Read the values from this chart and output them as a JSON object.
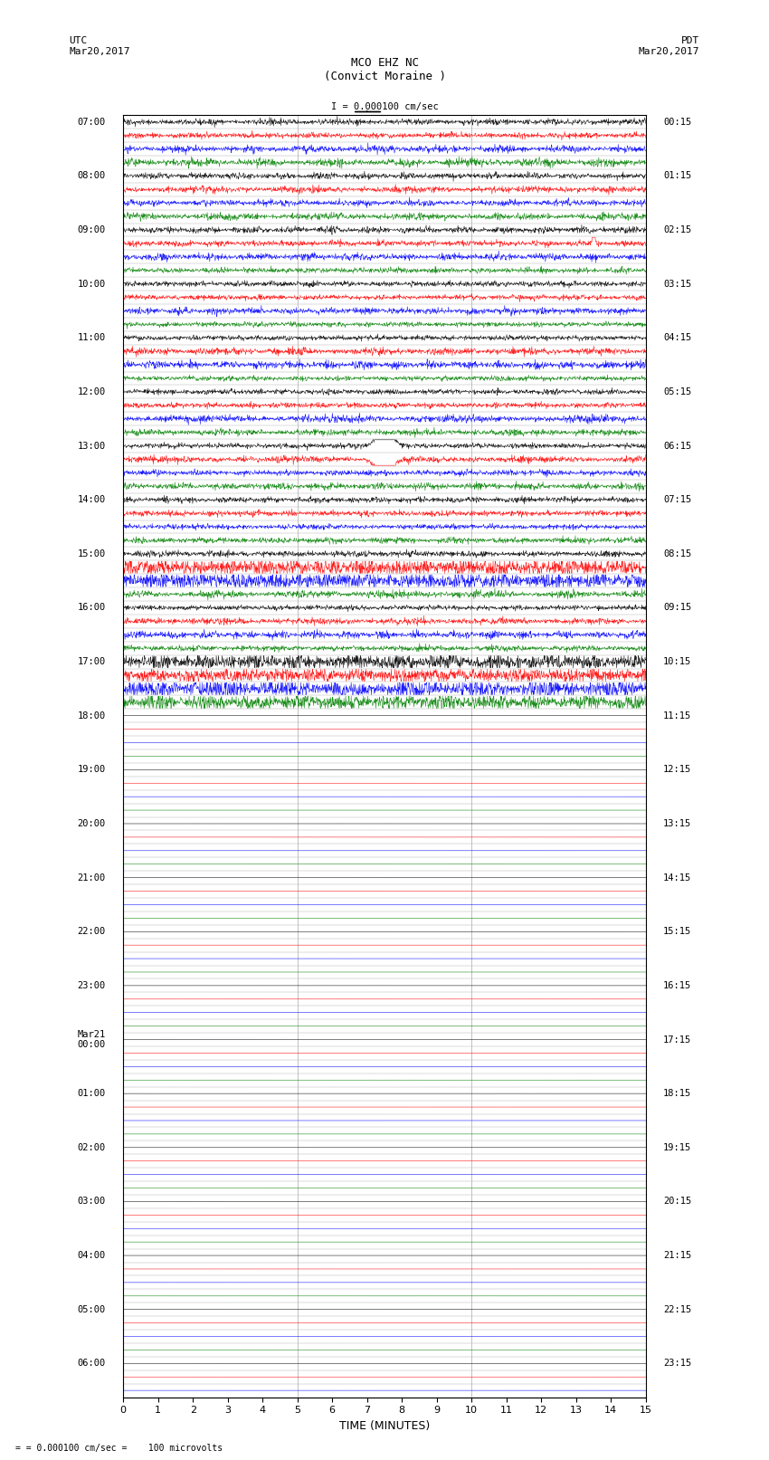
{
  "title_line1": "MCO EHZ NC",
  "title_line2": "(Convict Moraine )",
  "scale_label": "I = 0.000100 cm/sec",
  "left_header": "UTC\nMar20,2017",
  "right_header": "PDT\nMar20,2017",
  "bottom_label": "TIME (MINUTES)",
  "bottom_note": "= 0.000100 cm/sec =    100 microvolts",
  "xlim": [
    0,
    15
  ],
  "xticks": [
    0,
    1,
    2,
    3,
    4,
    5,
    6,
    7,
    8,
    9,
    10,
    11,
    12,
    13,
    14,
    15
  ],
  "figure_width": 8.5,
  "figure_height": 16.13,
  "dpi": 100,
  "left_times": [
    "07:00",
    "",
    "",
    "",
    "08:00",
    "",
    "",
    "",
    "09:00",
    "",
    "",
    "",
    "10:00",
    "",
    "",
    "",
    "11:00",
    "",
    "",
    "",
    "12:00",
    "",
    "",
    "",
    "13:00",
    "",
    "",
    "",
    "14:00",
    "",
    "",
    "",
    "15:00",
    "",
    "",
    "",
    "16:00",
    "",
    "",
    "",
    "17:00",
    "",
    "",
    "",
    "18:00",
    "",
    "",
    "",
    "19:00",
    "",
    "",
    "",
    "20:00",
    "",
    "",
    "",
    "21:00",
    "",
    "",
    "",
    "22:00",
    "",
    "",
    "",
    "23:00",
    "",
    "",
    "",
    "Mar21\n00:00",
    "",
    "",
    "",
    "01:00",
    "",
    "",
    "",
    "02:00",
    "",
    "",
    "",
    "03:00",
    "",
    "",
    "",
    "04:00",
    "",
    "",
    "",
    "05:00",
    "",
    "",
    "",
    "06:00",
    "",
    ""
  ],
  "right_times": [
    "00:15",
    "",
    "",
    "",
    "01:15",
    "",
    "",
    "",
    "02:15",
    "",
    "",
    "",
    "03:15",
    "",
    "",
    "",
    "04:15",
    "",
    "",
    "",
    "05:15",
    "",
    "",
    "",
    "06:15",
    "",
    "",
    "",
    "07:15",
    "",
    "",
    "",
    "08:15",
    "",
    "",
    "",
    "09:15",
    "",
    "",
    "",
    "10:15",
    "",
    "",
    "",
    "11:15",
    "",
    "",
    "",
    "12:15",
    "",
    "",
    "",
    "13:15",
    "",
    "",
    "",
    "14:15",
    "",
    "",
    "",
    "15:15",
    "",
    "",
    "",
    "16:15",
    "",
    "",
    "",
    "17:15",
    "",
    "",
    "",
    "18:15",
    "",
    "",
    "",
    "19:15",
    "",
    "",
    "",
    "20:15",
    "",
    "",
    "",
    "21:15",
    "",
    "",
    "",
    "22:15",
    "",
    "",
    "",
    "23:15",
    "",
    ""
  ],
  "num_rows": 95,
  "row_colors": [
    "black",
    "red",
    "blue",
    "green"
  ],
  "active_rows": 44,
  "noise_scale_active": 0.25,
  "noise_scale_inactive": 0.02,
  "seed": 42,
  "bg_color": "white",
  "grid_color": "#aaaaaa",
  "text_color": "black",
  "vline_x": [
    5,
    10
  ],
  "vline_color": "#aaaaaa"
}
